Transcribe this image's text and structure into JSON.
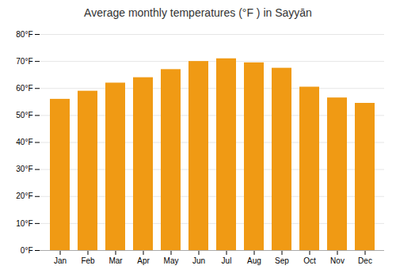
{
  "chart_data": {
    "type": "bar",
    "title": "Average monthly temperatures (°F ) in Sayyān",
    "categories": [
      "Jan",
      "Feb",
      "Mar",
      "Apr",
      "May",
      "Jun",
      "Jul",
      "Aug",
      "Sep",
      "Oct",
      "Nov",
      "Dec"
    ],
    "values": [
      56,
      59,
      62,
      64,
      67,
      70,
      71,
      69.5,
      67.5,
      60.5,
      56.5,
      54.5
    ],
    "color": "#F09A14",
    "ylim": [
      0,
      80
    ],
    "yticks": [
      {
        "value": 0,
        "label": "0°F"
      },
      {
        "value": 10,
        "label": "10°F"
      },
      {
        "value": 20,
        "label": "20°F"
      },
      {
        "value": 30,
        "label": "30°F"
      },
      {
        "value": 40,
        "label": "40°F"
      },
      {
        "value": 50,
        "label": "50°F"
      },
      {
        "value": 60,
        "label": "60°F"
      },
      {
        "value": 70,
        "label": "70°F"
      },
      {
        "value": 80,
        "label": "80°F"
      }
    ],
    "grid": true
  }
}
